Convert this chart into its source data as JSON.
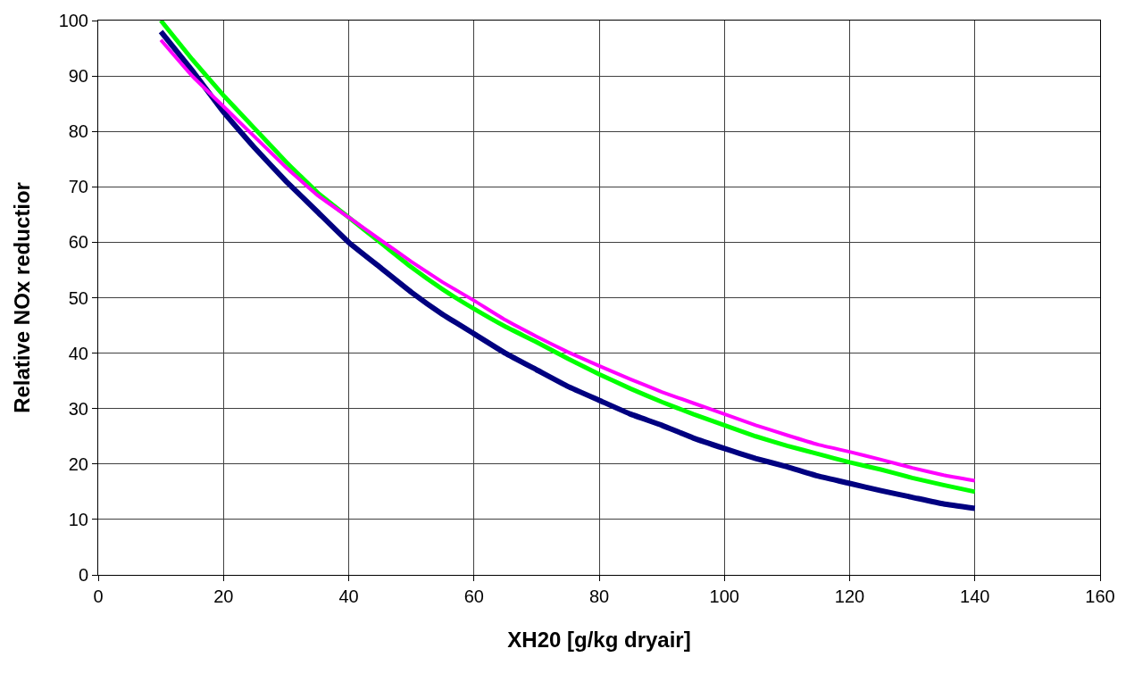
{
  "chart_data": {
    "type": "line",
    "xlabel": "XH20 [g/kg dryair]",
    "ylabel": "Relative NOx reductior",
    "x": [
      10,
      15,
      20,
      25,
      30,
      35,
      40,
      45,
      50,
      55,
      60,
      65,
      70,
      75,
      80,
      85,
      90,
      95,
      100,
      105,
      110,
      115,
      120,
      125,
      130,
      135,
      140
    ],
    "series": [
      {
        "color": "#000080",
        "values": [
          98,
          91,
          83.5,
          77,
          71,
          65.5,
          60,
          55.5,
          51,
          47,
          43.5,
          40,
          37,
          34,
          31.5,
          29,
          27,
          24.7,
          22.8,
          21,
          19.5,
          17.8,
          16.5,
          15.2,
          14,
          12.8,
          12
        ]
      },
      {
        "color": "#00ff00",
        "values": [
          100,
          93,
          86.5,
          80.5,
          74.5,
          69,
          64.5,
          60,
          55.5,
          51.5,
          48,
          44.8,
          42,
          39,
          36.2,
          33.6,
          31.2,
          29,
          27,
          25,
          23.3,
          21.8,
          20.3,
          19,
          17.5,
          16.2,
          15
        ]
      },
      {
        "color": "#ff00ff",
        "values": [
          96.5,
          90,
          84.5,
          79,
          73.5,
          68.5,
          64.5,
          60.5,
          56.5,
          52.8,
          49.5,
          46,
          43,
          40.2,
          37.7,
          35.3,
          33,
          31,
          29,
          27,
          25.2,
          23.5,
          22.2,
          20.8,
          19.3,
          18,
          17
        ]
      }
    ],
    "xlim": [
      0,
      160
    ],
    "xticks": [
      0,
      20,
      40,
      60,
      80,
      100,
      120,
      140,
      160
    ],
    "ylim": [
      0,
      100
    ],
    "yticks": [
      0,
      10,
      20,
      30,
      40,
      50,
      60,
      70,
      80,
      90,
      100
    ],
    "grid": true,
    "marker": "none",
    "line_style": "solid"
  }
}
